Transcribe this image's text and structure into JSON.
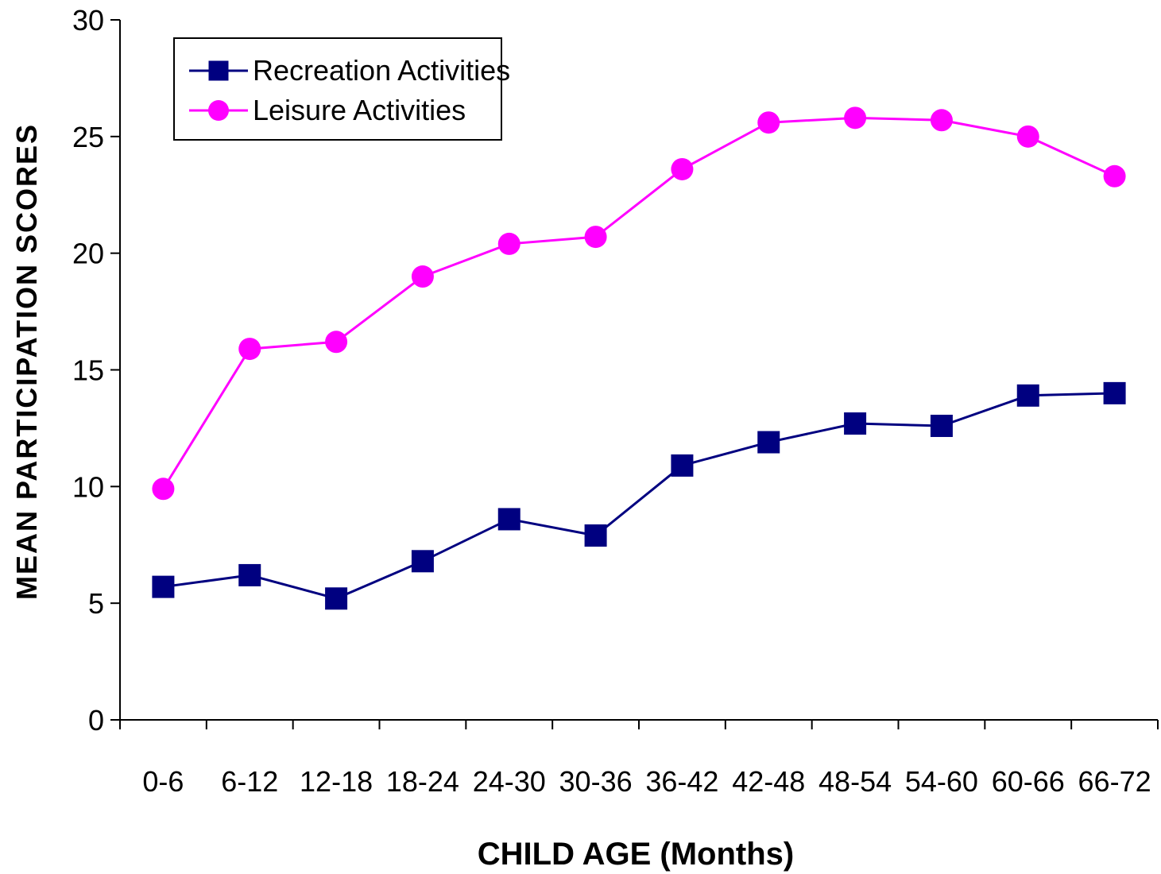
{
  "chart_data": {
    "type": "line",
    "title": "",
    "xlabel": "CHILD AGE (Months)",
    "ylabel": "MEAN PARTICIPATION SCORES",
    "ylim": [
      0,
      30
    ],
    "yticks": [
      0,
      5,
      10,
      15,
      20,
      25,
      30
    ],
    "grid": false,
    "legend_position": "top-left",
    "categories": [
      "0-6",
      "6-12",
      "12-18",
      "18-24",
      "24-30",
      "30-36",
      "36-42",
      "42-48",
      "48-54",
      "54-60",
      "60-66",
      "66-72"
    ],
    "series": [
      {
        "name": "Recreation Activities",
        "color": "#000080",
        "marker": "square",
        "values": [
          5.7,
          6.2,
          5.2,
          6.8,
          8.6,
          7.9,
          10.9,
          11.9,
          12.7,
          12.6,
          13.9,
          14.0
        ]
      },
      {
        "name": "Leisure Activities",
        "color": "#ff00ff",
        "marker": "circle",
        "values": [
          9.9,
          15.9,
          16.2,
          19.0,
          20.4,
          20.7,
          23.6,
          25.6,
          25.8,
          25.7,
          25.0,
          23.3
        ]
      }
    ]
  }
}
